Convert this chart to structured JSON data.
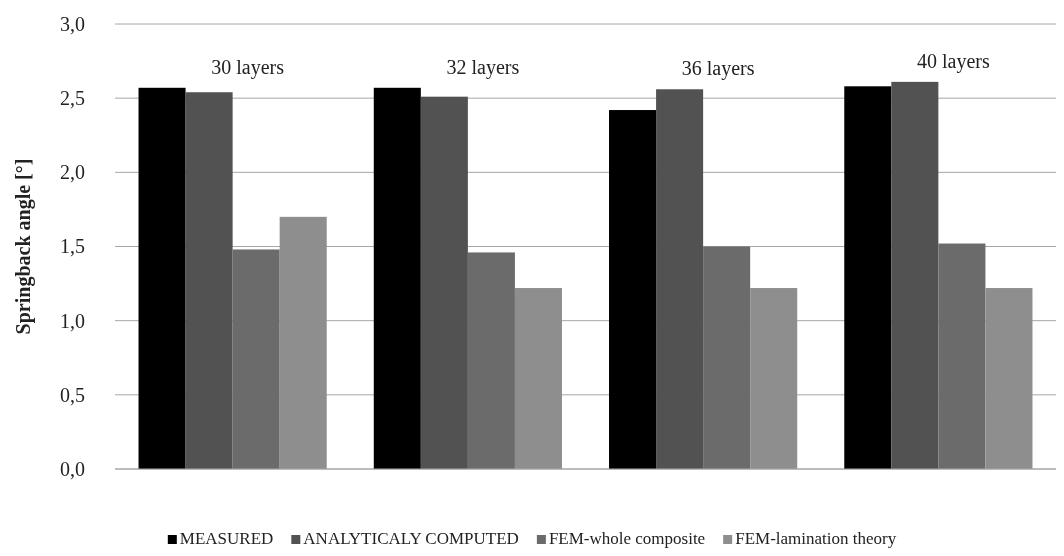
{
  "chart_data": {
    "type": "bar",
    "ylabel": "Springback angle [°]",
    "categories": [
      "30 layers",
      "32 layers",
      "36 layers",
      "40 layers"
    ],
    "series": [
      {
        "name": "MEASURED",
        "color": "#000000",
        "values": [
          2.57,
          2.57,
          2.42,
          2.58
        ]
      },
      {
        "name": "ANALYTICALY COMPUTED",
        "color": "#525252",
        "values": [
          2.54,
          2.51,
          2.56,
          2.61
        ]
      },
      {
        "name": "FEM-whole composite",
        "color": "#6b6b6b",
        "values": [
          1.48,
          1.46,
          1.5,
          1.52
        ]
      },
      {
        "name": "FEM-lamination theory",
        "color": "#8e8e8e",
        "values": [
          1.7,
          1.22,
          1.22,
          1.22
        ]
      }
    ],
    "ylim": [
      0,
      3
    ],
    "yticks": [
      {
        "value": 0,
        "label": "0,0"
      },
      {
        "value": 0.5,
        "label": "0,5"
      },
      {
        "value": 1,
        "label": "1,0"
      },
      {
        "value": 1.5,
        "label": "1,5"
      },
      {
        "value": 2,
        "label": "2,0"
      },
      {
        "value": 2.5,
        "label": "2,5"
      },
      {
        "value": 3,
        "label": "3,0"
      }
    ],
    "grid": "y",
    "legend": "bottom"
  }
}
